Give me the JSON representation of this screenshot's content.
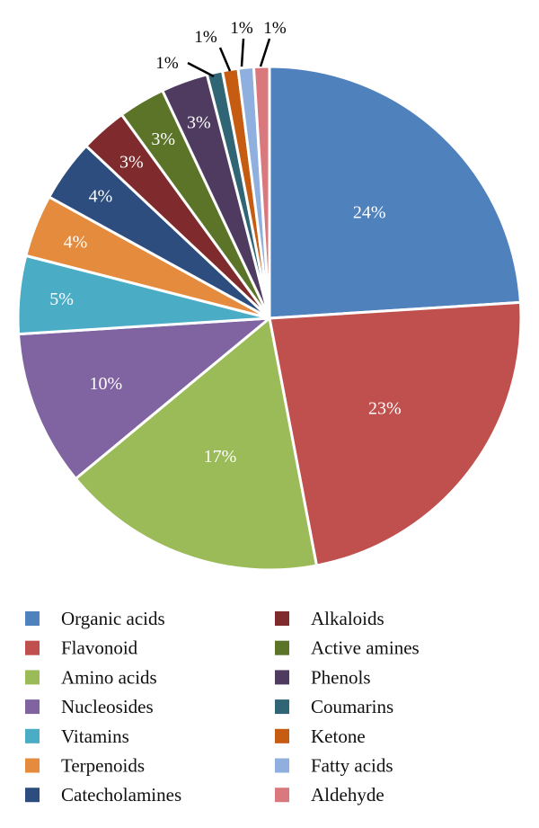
{
  "chart_data": {
    "type": "pie",
    "title": "",
    "slices": [
      {
        "name": "Organic acids",
        "value": 24,
        "label": "24%",
        "color": "#4f81bd"
      },
      {
        "name": "Flavonoid",
        "value": 23,
        "label": "23%",
        "color": "#c0504d"
      },
      {
        "name": "Amino acids",
        "value": 17,
        "label": "17%",
        "color": "#9bbb59"
      },
      {
        "name": "Nucleosides",
        "value": 10,
        "label": "10%",
        "color": "#8064a2"
      },
      {
        "name": "Vitamins",
        "value": 5,
        "label": "5%",
        "color": "#4bacc6"
      },
      {
        "name": "Terpenoids",
        "value": 4,
        "label": "4%",
        "color": "#e48b3d"
      },
      {
        "name": "Catecholamines",
        "value": 4,
        "label": "4%",
        "color": "#2c4d7e"
      },
      {
        "name": "Alkaloids",
        "value": 3,
        "label": "3%",
        "color": "#7f2a2d"
      },
      {
        "name": "Active amines",
        "value": 3,
        "label": "3%",
        "color": "#5b7427"
      },
      {
        "name": "Phenols",
        "value": 3,
        "label": "3%",
        "color": "#4f3b5f"
      },
      {
        "name": "Coumarins",
        "value": 1,
        "label": "1%",
        "color": "#2f6574"
      },
      {
        "name": "Ketone",
        "value": 1,
        "label": "1%",
        "color": "#c55c11"
      },
      {
        "name": "Fatty acids",
        "value": 1,
        "label": "1%",
        "color": "#8fb0de"
      },
      {
        "name": "Aldehyde",
        "value": 1,
        "label": "1%",
        "color": "#d9787d"
      }
    ],
    "legend_position": "bottom"
  }
}
